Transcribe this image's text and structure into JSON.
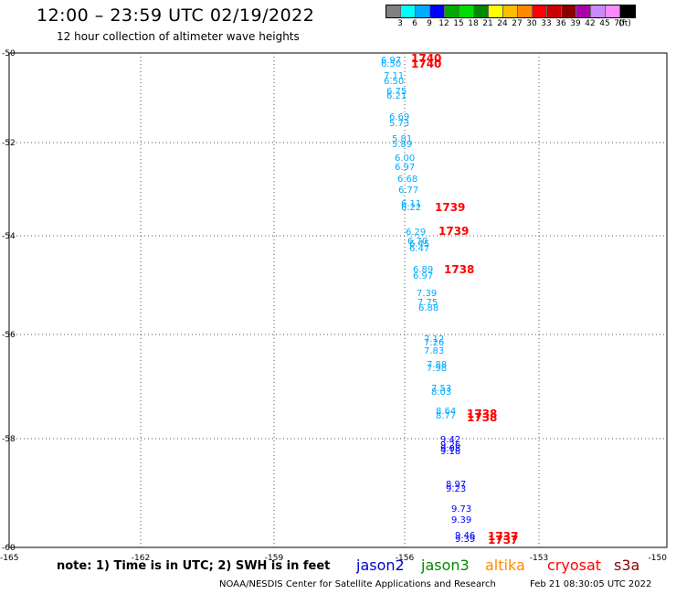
{
  "header": {
    "title": "12:00 – 23:59 UTC 02/19/2022",
    "subtitle": "12 hour collection of altimeter wave heights"
  },
  "legend": {
    "colors": [
      "#808080",
      "#00ffff",
      "#00aaff",
      "#0000ff",
      "#00aa00",
      "#00dd00",
      "#008800",
      "#ffff00",
      "#ffbb00",
      "#ff8800",
      "#ff0000",
      "#cc0000",
      "#880000",
      "#aa00aa",
      "#cc88ff",
      "#ff88ff",
      "#000000"
    ],
    "labels": [
      "3",
      "6",
      "9",
      "12",
      "15",
      "18",
      "21",
      "24",
      "27",
      "30",
      "33",
      "36",
      "39",
      "42",
      "45",
      "70",
      "(ft)"
    ]
  },
  "axes": {
    "lat_ticks": [
      "-50",
      "-52",
      "-54",
      "-56",
      "-58",
      "-60"
    ],
    "lon_ticks": [
      "-165",
      "-162",
      "-159",
      "-156",
      "-153",
      "-150"
    ]
  },
  "readings": [
    {
      "text": "6.97",
      "color": "#00aaff"
    },
    {
      "text": "6.50",
      "color": "#00aaff"
    },
    {
      "text": "7.11",
      "color": "#00aaff"
    },
    {
      "text": "6.50",
      "color": "#00aaff"
    },
    {
      "text": "6.75",
      "color": "#00aaff"
    },
    {
      "text": "6.21",
      "color": "#00aaff"
    },
    {
      "text": "6.69",
      "color": "#00aaff"
    },
    {
      "text": "5.73",
      "color": "#00aaff"
    },
    {
      "text": "5.81",
      "color": "#00aaff"
    },
    {
      "text": "5.89",
      "color": "#00aaff"
    },
    {
      "text": "6.00",
      "color": "#00aaff"
    },
    {
      "text": "6.97",
      "color": "#00aaff"
    },
    {
      "text": "6.68",
      "color": "#00aaff"
    },
    {
      "text": "6.77",
      "color": "#00aaff"
    },
    {
      "text": "6.11",
      "color": "#00aaff"
    },
    {
      "text": "6.22",
      "color": "#00aaff"
    },
    {
      "text": "6.29",
      "color": "#00aaff"
    },
    {
      "text": "6.70",
      "color": "#00aaff"
    },
    {
      "text": "6.45",
      "color": "#00aaff"
    },
    {
      "text": "6.47",
      "color": "#00aaff"
    },
    {
      "text": "6.89",
      "color": "#00aaff"
    },
    {
      "text": "6.97",
      "color": "#00aaff"
    },
    {
      "text": "7.39",
      "color": "#00aaff"
    },
    {
      "text": "7.75",
      "color": "#00aaff"
    },
    {
      "text": "6.88",
      "color": "#00aaff"
    },
    {
      "text": "7.12",
      "color": "#00aaff"
    },
    {
      "text": "7.26",
      "color": "#00aaff"
    },
    {
      "text": "7.83",
      "color": "#00aaff"
    },
    {
      "text": "7.88",
      "color": "#00aaff"
    },
    {
      "text": "7.98",
      "color": "#00aaff"
    },
    {
      "text": "7.53",
      "color": "#00aaff"
    },
    {
      "text": "8.03",
      "color": "#00aaff"
    },
    {
      "text": "8.64",
      "color": "#00aaff"
    },
    {
      "text": "8.77",
      "color": "#00aaff"
    },
    {
      "text": "9.42",
      "color": "#0000ff"
    },
    {
      "text": "9.26",
      "color": "#0000ff"
    },
    {
      "text": "9.08",
      "color": "#0000ff"
    },
    {
      "text": "9.18",
      "color": "#0000ff"
    },
    {
      "text": "8.97",
      "color": "#0000ff"
    },
    {
      "text": "9.23",
      "color": "#0000ff"
    },
    {
      "text": "9.73",
      "color": "#0000ff"
    },
    {
      "text": "9.39",
      "color": "#0000ff"
    },
    {
      "text": "9.46",
      "color": "#0000ff"
    },
    {
      "text": "9.39",
      "color": "#0000ff"
    }
  ],
  "time_labels": [
    {
      "text": "1740",
      "color": "#ff0000"
    },
    {
      "text": "1740",
      "color": "#ff0000"
    },
    {
      "text": "1739",
      "color": "#ff0000"
    },
    {
      "text": "1739",
      "color": "#ff0000"
    },
    {
      "text": "1738",
      "color": "#ff0000"
    },
    {
      "text": "1738",
      "color": "#ff0000"
    },
    {
      "text": "1738",
      "color": "#ff0000"
    },
    {
      "text": "1737",
      "color": "#ff0000"
    },
    {
      "text": "1737",
      "color": "#ff0000"
    }
  ],
  "footer": {
    "note": "note: 1) Time is in UTC; 2) SWH is in feet",
    "satellites": [
      {
        "name": "jason2",
        "color": "#0000cc"
      },
      {
        "name": "jason3",
        "color": "#008800"
      },
      {
        "name": "altika",
        "color": "#ff8800"
      },
      {
        "name": "cryosat",
        "color": "#ff0000"
      },
      {
        "name": "s3a",
        "color": "#880000"
      }
    ],
    "credit": "NOAA/NESDIS Center for Satellite Applications and Research",
    "timestamp": "Feb 21 08:30:05 UTC 2022"
  }
}
